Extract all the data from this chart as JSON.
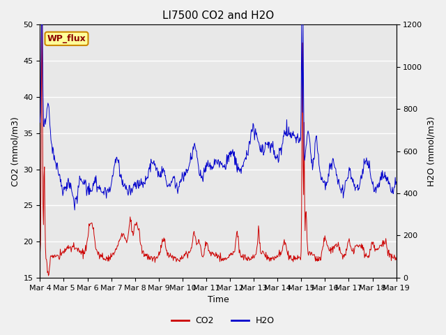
{
  "title": "LI7500 CO2 and H2O",
  "xlabel": "Time",
  "ylabel_left": "CO2 (mmol/m3)",
  "ylabel_right": "H2O (mmol/m3)",
  "ylim_left": [
    15,
    50
  ],
  "ylim_right": [
    0,
    1200
  ],
  "xtick_labels": [
    "Mar 4",
    "Mar 5",
    "Mar 6",
    "Mar 7",
    "Mar 8",
    "Mar 9",
    "Mar 10",
    "Mar 11",
    "Mar 12",
    "Mar 13",
    "Mar 14",
    "Mar 15",
    "Mar 16",
    "Mar 17",
    "Mar 18",
    "Mar 19"
  ],
  "yticks_left": [
    15,
    20,
    25,
    30,
    35,
    40,
    45,
    50
  ],
  "yticks_right": [
    0,
    200,
    400,
    600,
    800,
    1000,
    1200
  ],
  "co2_color": "#CC0000",
  "h2o_color": "#0000CC",
  "fig_bg_color": "#F0F0F0",
  "plot_bg_color": "#E8E8E8",
  "grid_color": "#FFFFFF",
  "annotation_text": "WP_flux",
  "annotation_bg": "#FFFF99",
  "annotation_border": "#CC8800",
  "title_fontsize": 11,
  "label_fontsize": 9,
  "tick_fontsize": 8,
  "legend_fontsize": 9,
  "linewidth": 0.7
}
